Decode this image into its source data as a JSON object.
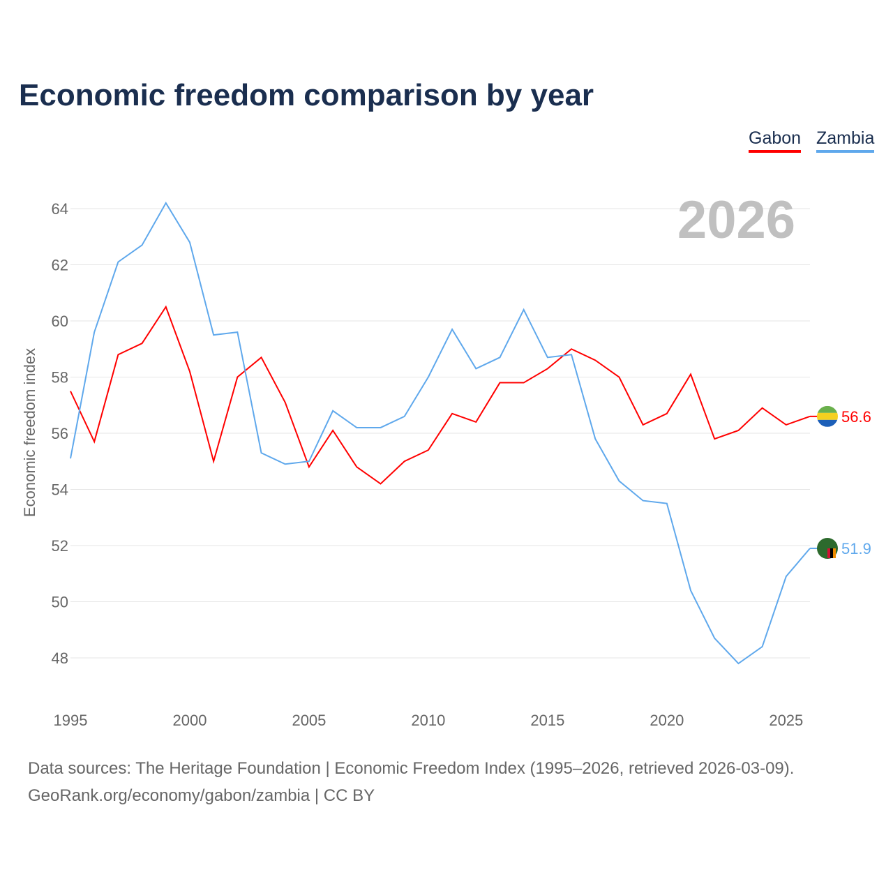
{
  "chart_data": {
    "type": "line",
    "title": "Economic freedom comparison by year",
    "ylabel": "Economic freedom index",
    "xlabel": "",
    "watermark_year": "2026",
    "x": [
      1995,
      1996,
      1997,
      1998,
      1999,
      2000,
      2001,
      2002,
      2003,
      2004,
      2005,
      2006,
      2007,
      2008,
      2009,
      2010,
      2011,
      2012,
      2013,
      2014,
      2015,
      2016,
      2017,
      2018,
      2019,
      2020,
      2021,
      2022,
      2023,
      2024,
      2025,
      2026
    ],
    "xticks": [
      1995,
      2000,
      2005,
      2010,
      2015,
      2020,
      2025
    ],
    "yticks": [
      48,
      50,
      52,
      54,
      56,
      58,
      60,
      62,
      64
    ],
    "xlim": [
      1995,
      2026
    ],
    "ylim": [
      46.5,
      65
    ],
    "grid": true,
    "legend_position": "top-right",
    "series": [
      {
        "name": "Gabon",
        "color": "#ff0000",
        "end_label": "56.6",
        "values": [
          57.5,
          55.7,
          58.8,
          59.2,
          60.5,
          58.2,
          55.0,
          58.0,
          58.7,
          57.1,
          54.8,
          56.1,
          54.8,
          54.2,
          55.0,
          55.4,
          56.7,
          56.4,
          57.8,
          57.8,
          58.3,
          59.0,
          58.6,
          58.0,
          56.3,
          56.7,
          58.1,
          55.8,
          56.1,
          56.9,
          56.3,
          56.6
        ]
      },
      {
        "name": "Zambia",
        "color": "#5fa8ec",
        "end_label": "51.9",
        "values": [
          55.1,
          59.6,
          62.1,
          62.7,
          64.2,
          62.8,
          59.5,
          59.6,
          55.3,
          54.9,
          55.0,
          56.8,
          56.2,
          56.2,
          56.6,
          58.0,
          59.7,
          58.3,
          58.7,
          60.4,
          58.7,
          58.8,
          55.8,
          54.3,
          53.6,
          53.5,
          50.4,
          48.7,
          47.8,
          48.4,
          50.9,
          51.9
        ]
      }
    ]
  },
  "source_line1": "Data sources: The Heritage Foundation | Economic Freedom Index (1995–2026, retrieved 2026-03-09).",
  "source_line2": "GeoRank.org/economy/gabon/zambia | CC BY"
}
